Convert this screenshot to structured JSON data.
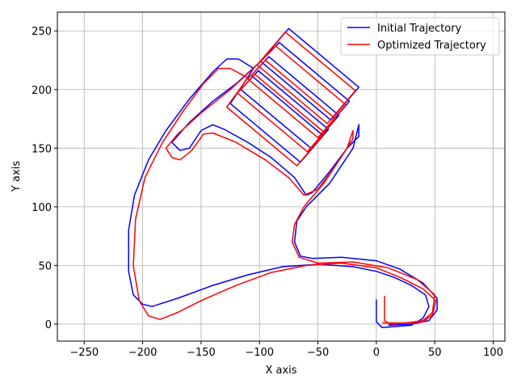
{
  "chart_data": {
    "type": "line",
    "x_label": "X axis",
    "y_label": "Y axis",
    "xlim": [
      -273,
      110
    ],
    "ylim": [
      -14.5,
      266
    ],
    "xticks": [
      {
        "value": -250,
        "label": "−250"
      },
      {
        "value": -200,
        "label": "−200"
      },
      {
        "value": -150,
        "label": "−150"
      },
      {
        "value": -100,
        "label": "−100"
      },
      {
        "value": -50,
        "label": "−50"
      },
      0,
      50,
      100
    ],
    "yticks": [
      0,
      50,
      100,
      150,
      200,
      250
    ],
    "grid": true,
    "legend": "upper right",
    "series": [
      {
        "name": "Initial Trajectory",
        "color": "#0000ff",
        "x": [
          0,
          0,
          5,
          30,
          40,
          45,
          42,
          30,
          15,
          0,
          -20,
          -50,
          -80,
          -110,
          -140,
          -170,
          -192,
          -200,
          -208,
          -212,
          -212,
          -207,
          -195,
          -180,
          -160,
          -140,
          -128,
          -118,
          -105,
          -125,
          -65,
          -41,
          -101,
          -116,
          -56,
          -32,
          -92,
          -107,
          -47,
          -23,
          -83,
          -99,
          -39,
          -15,
          -75,
          -99,
          -120,
          -140,
          -160,
          -175,
          -168,
          -160,
          -150,
          -140,
          -130,
          -110,
          -90,
          -70,
          -60,
          -55,
          -40,
          -25,
          -15,
          -15,
          -20,
          -40,
          -60,
          -68,
          -70,
          -65,
          -55,
          -30,
          0,
          20,
          40,
          52,
          52,
          45,
          30,
          10
        ],
        "y": [
          21,
          2,
          -3,
          -1,
          5,
          15,
          25,
          33,
          40,
          45,
          49,
          51,
          49,
          42,
          33,
          22,
          15,
          17,
          25,
          45,
          80,
          110,
          140,
          165,
          192,
          215,
          226,
          226,
          218,
          188,
          138,
          166,
          216,
          200,
          150,
          178,
          228,
          212,
          162,
          190,
          240,
          224,
          174,
          202,
          252,
          224,
          205,
          190,
          172,
          155,
          148,
          150,
          165,
          170,
          166,
          155,
          142,
          125,
          110,
          112,
          130,
          150,
          160,
          170,
          150,
          120,
          100,
          88,
          70,
          58,
          56,
          57,
          54,
          47,
          35,
          22,
          12,
          3,
          0,
          -1
        ]
      },
      {
        "name": "Optimized Trajectory",
        "color": "#ff0000",
        "x": [
          7,
          7,
          12,
          40,
          48,
          51,
          40,
          20,
          0,
          -30,
          -60,
          -90,
          -120,
          -150,
          -170,
          -185,
          -195,
          -203,
          -208,
          -206,
          -198,
          -183,
          -165,
          -148,
          -135,
          -125,
          -110,
          -128,
          -68,
          -44,
          -104,
          -119,
          -59,
          -35,
          -95,
          -110,
          -50,
          -26,
          -86,
          -102,
          -42,
          -18,
          -78,
          -102,
          -125,
          -150,
          -170,
          -180,
          -175,
          -168,
          -158,
          -148,
          -140,
          -120,
          -95,
          -75,
          -62,
          -50,
          -35,
          -20,
          -20,
          -25,
          -45,
          -62,
          -70,
          -72,
          -66,
          -50,
          -20,
          10,
          35,
          50,
          48,
          40,
          25,
          5
        ],
        "y": [
          24,
          3,
          0,
          2,
          8,
          20,
          30,
          40,
          48,
          52,
          50,
          44,
          33,
          20,
          10,
          4,
          7,
          20,
          50,
          90,
          125,
          155,
          182,
          205,
          218,
          218,
          210,
          185,
          135,
          163,
          213,
          197,
          147,
          175,
          225,
          209,
          159,
          187,
          237,
          221,
          171,
          199,
          249,
          221,
          200,
          180,
          162,
          150,
          142,
          140,
          148,
          162,
          163,
          155,
          140,
          125,
          110,
          115,
          135,
          158,
          165,
          150,
          120,
          100,
          85,
          70,
          57,
          52,
          53,
          48,
          38,
          25,
          10,
          3,
          1,
          1
        ]
      }
    ]
  }
}
